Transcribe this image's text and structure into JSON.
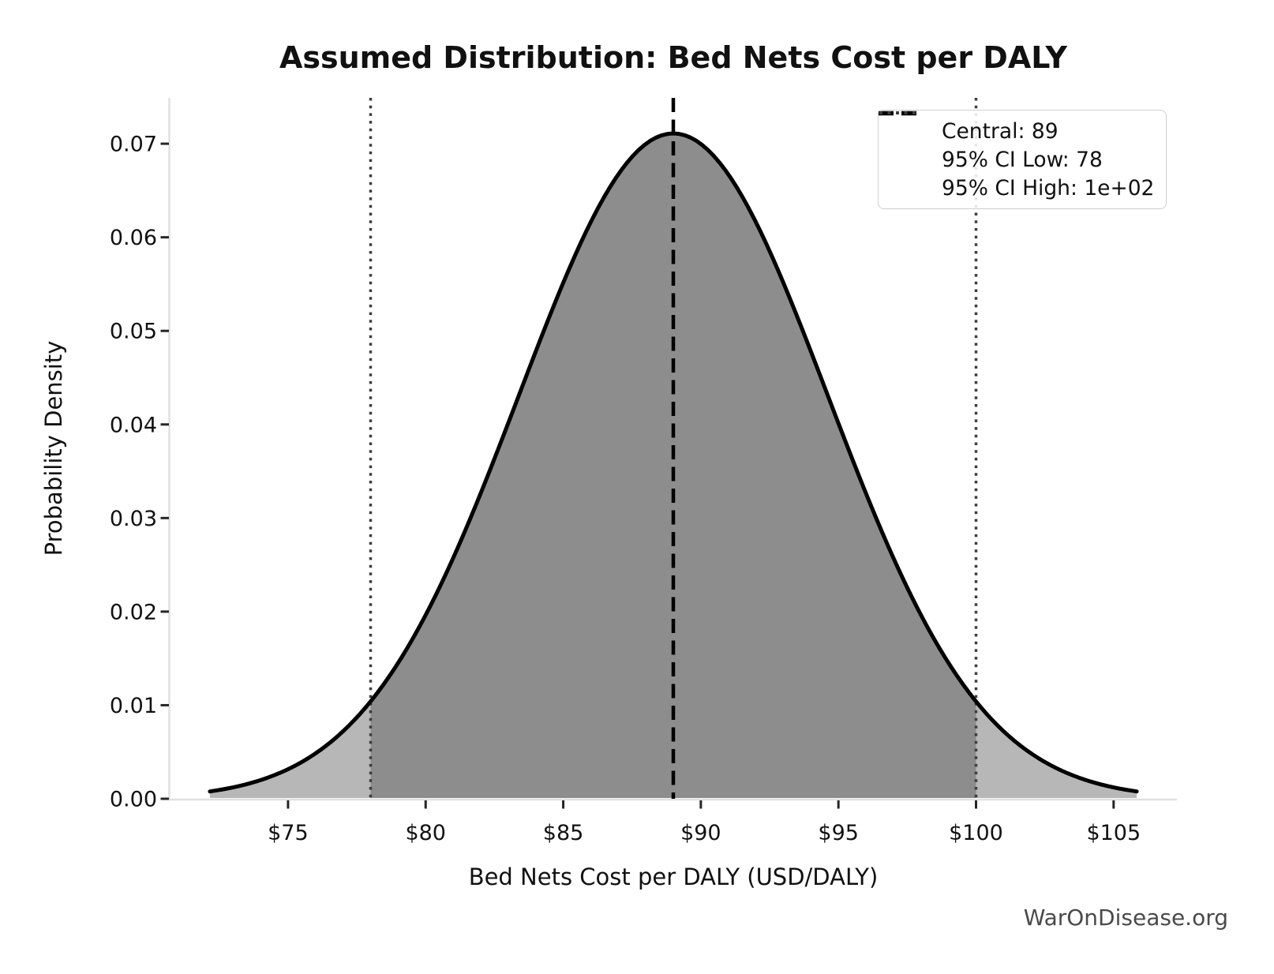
{
  "chart_data": {
    "type": "area",
    "title": "Assumed Distribution: Bed Nets Cost per DALY",
    "xlabel": "Bed Nets Cost per DALY (USD/DALY)",
    "ylabel": "Probability Density",
    "watermark": "WarOnDisease.org",
    "distribution": {
      "shape": "normal",
      "mean": 89,
      "sigma": 5.61,
      "peak_density": 0.0711,
      "plot_x_min": 72.16,
      "plot_x_max": 105.84
    },
    "markers": {
      "central": {
        "value": 89,
        "style": "dashed",
        "label": "Central: 89"
      },
      "ci_low": {
        "value": 78,
        "style": "dotted",
        "label": "95% CI Low: 78"
      },
      "ci_high": {
        "value": 100,
        "style": "dotted",
        "label": "95% CI High: 1e+02"
      },
      "density_at_ci": 0.0104
    },
    "legend": {
      "position": "upper right",
      "entries": [
        {
          "label": "Central: 89",
          "style": "dashed"
        },
        {
          "label": "95% CI Low: 78",
          "style": "dotted"
        },
        {
          "label": "95% CI High: 1e+02",
          "style": "dotted"
        }
      ]
    },
    "axes": {
      "grid": false,
      "xlim": [
        70.7,
        107.3
      ],
      "ylim": [
        0,
        0.0749
      ],
      "x_ticks": [
        {
          "v": 75,
          "label": "$75"
        },
        {
          "v": 80,
          "label": "$80"
        },
        {
          "v": 85,
          "label": "$85"
        },
        {
          "v": 90,
          "label": "$90"
        },
        {
          "v": 95,
          "label": "$95"
        },
        {
          "v": 100,
          "label": "$100"
        },
        {
          "v": 105,
          "label": "$105"
        }
      ],
      "y_ticks": [
        {
          "v": 0.0,
          "label": "0.00"
        },
        {
          "v": 0.01,
          "label": "0.01"
        },
        {
          "v": 0.02,
          "label": "0.02"
        },
        {
          "v": 0.03,
          "label": "0.03"
        },
        {
          "v": 0.04,
          "label": "0.04"
        },
        {
          "v": 0.05,
          "label": "0.05"
        },
        {
          "v": 0.06,
          "label": "0.06"
        },
        {
          "v": 0.07,
          "label": "0.07"
        }
      ]
    },
    "colors": {
      "curve": "#000000",
      "fill_tail": "#b7b7b7",
      "fill_ci": "#8d8d8d",
      "central_line": "#000000",
      "ci_line": "#3d3d3d",
      "spine": "#e0e0e0",
      "tick": "#262626",
      "text": "#111111",
      "watermark": "#4a4a4a",
      "legend_border": "#cfcfcf"
    }
  }
}
